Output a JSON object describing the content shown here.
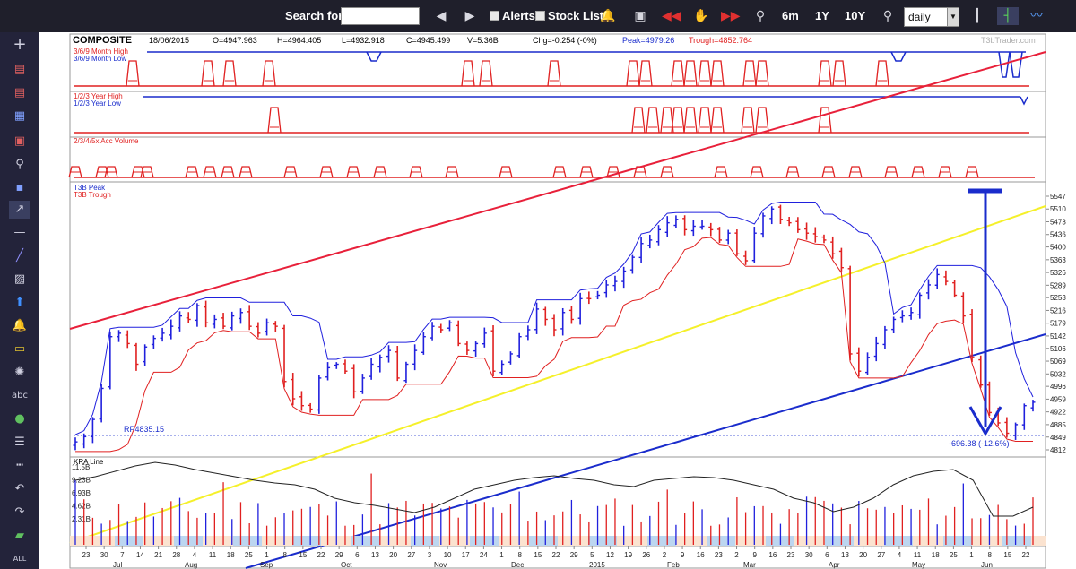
{
  "toolbar": {
    "search_label": "Search for:",
    "search_value": "",
    "alerts_label": "Alerts",
    "stock_list_label": "Stock List",
    "range_6m": "6m",
    "range_1y": "1Y",
    "range_10y": "10Y",
    "period_value": "daily"
  },
  "header": {
    "symbol": "COMPOSITE",
    "date": "18/06/2015",
    "open": "O=4947.963",
    "high": "H=4964.405",
    "low": "L=4932.918",
    "close": "C=4945.499",
    "volume": "V=5.36B",
    "change": "Chg=-0.254 (-0%)",
    "peak": "Peak=4979.26",
    "trough": "Trough=4852.764",
    "watermark": "T3bTrader.com"
  },
  "panels": {
    "p1_label_a": "3/6/9 Month High",
    "p1_label_b": "3/6/9 Month Low",
    "p2_label_a": "1/2/3 Year High",
    "p2_label_b": "1/2/3 Year Low",
    "p3_label": "2/3/4/5x Acc Volume",
    "main_label_a": "T3B Peak",
    "main_label_b": "T3B Trough",
    "kra_label": "KRA Line"
  },
  "annotations": {
    "rp": "RP4835.15",
    "drop": "-696.38 (-12.6%)"
  },
  "colors": {
    "up": "#2020dd",
    "down": "#e02020",
    "red_channel": "#e8203a",
    "yellow_line": "#f5f02a",
    "blue_line": "#1a2ccc",
    "toolbar_bg": "#1f1f2b"
  },
  "chart_data": {
    "type": "line",
    "title": "COMPOSITE",
    "price_axis_ticks": [
      "5547",
      "5510",
      "5473",
      "5436",
      "5400",
      "5363",
      "5326",
      "5289",
      "5253",
      "5216",
      "5179",
      "5142",
      "5106",
      "5069",
      "5032",
      "4996",
      "4959",
      "4922",
      "4885",
      "4849",
      "4812"
    ],
    "volume_axis_ticks": [
      "11.5B",
      "9.23B",
      "6.93B",
      "4.62B",
      "2.31B"
    ],
    "date_ticks": [
      "23",
      "30",
      "7",
      "14",
      "21",
      "28",
      "4",
      "11",
      "18",
      "25",
      "1",
      "8",
      "15",
      "22",
      "29",
      "6",
      "13",
      "20",
      "27",
      "3",
      "10",
      "17",
      "24",
      "1",
      "8",
      "15",
      "22",
      "29",
      "5",
      "12",
      "19",
      "26",
      "2",
      "9",
      "16",
      "23",
      "2",
      "9",
      "16",
      "23",
      "30",
      "6",
      "13",
      "20",
      "27",
      "4",
      "11",
      "18",
      "25",
      "1",
      "8",
      "15",
      "22"
    ],
    "month_labels": [
      "Jul",
      "Aug",
      "Sep",
      "Oct",
      "Nov",
      "Dec",
      "2015",
      "Feb",
      "Mar",
      "Apr",
      "May",
      "Jun"
    ],
    "close_series": [
      4835,
      4850,
      4900,
      4990,
      5140,
      5150,
      5120,
      5060,
      5110,
      5135,
      5150,
      5170,
      5200,
      5190,
      5230,
      5180,
      5190,
      5170,
      5200,
      5210,
      5170,
      5150,
      5180,
      5170,
      5010,
      4960,
      4940,
      4930,
      5020,
      5050,
      5060,
      5040,
      4980,
      5020,
      5060,
      5080,
      5100,
      5020,
      5060,
      5100,
      5140,
      5170,
      5160,
      5180,
      5120,
      5100,
      5120,
      5150,
      5040,
      5060,
      5090,
      5140,
      5160,
      5220,
      5190,
      5160,
      5210,
      5190,
      5250,
      5250,
      5260,
      5290,
      5300,
      5330,
      5370,
      5410,
      5420,
      5450,
      5470,
      5480,
      5450,
      5460,
      5460,
      5450,
      5420,
      5440,
      5380,
      5360,
      5440,
      5490,
      5510,
      5480,
      5470,
      5450,
      5440,
      5430,
      5420,
      5380,
      5340,
      5090,
      5040,
      5080,
      5120,
      5160,
      5190,
      5200,
      5210,
      5260,
      5290,
      5320,
      5300,
      5260,
      5200,
      5080,
      5000,
      4920,
      4890,
      4860,
      4885,
      4940,
      4950
    ],
    "annotations": [
      "RP4835.15",
      "-696.38 (-12.6%)"
    ]
  }
}
